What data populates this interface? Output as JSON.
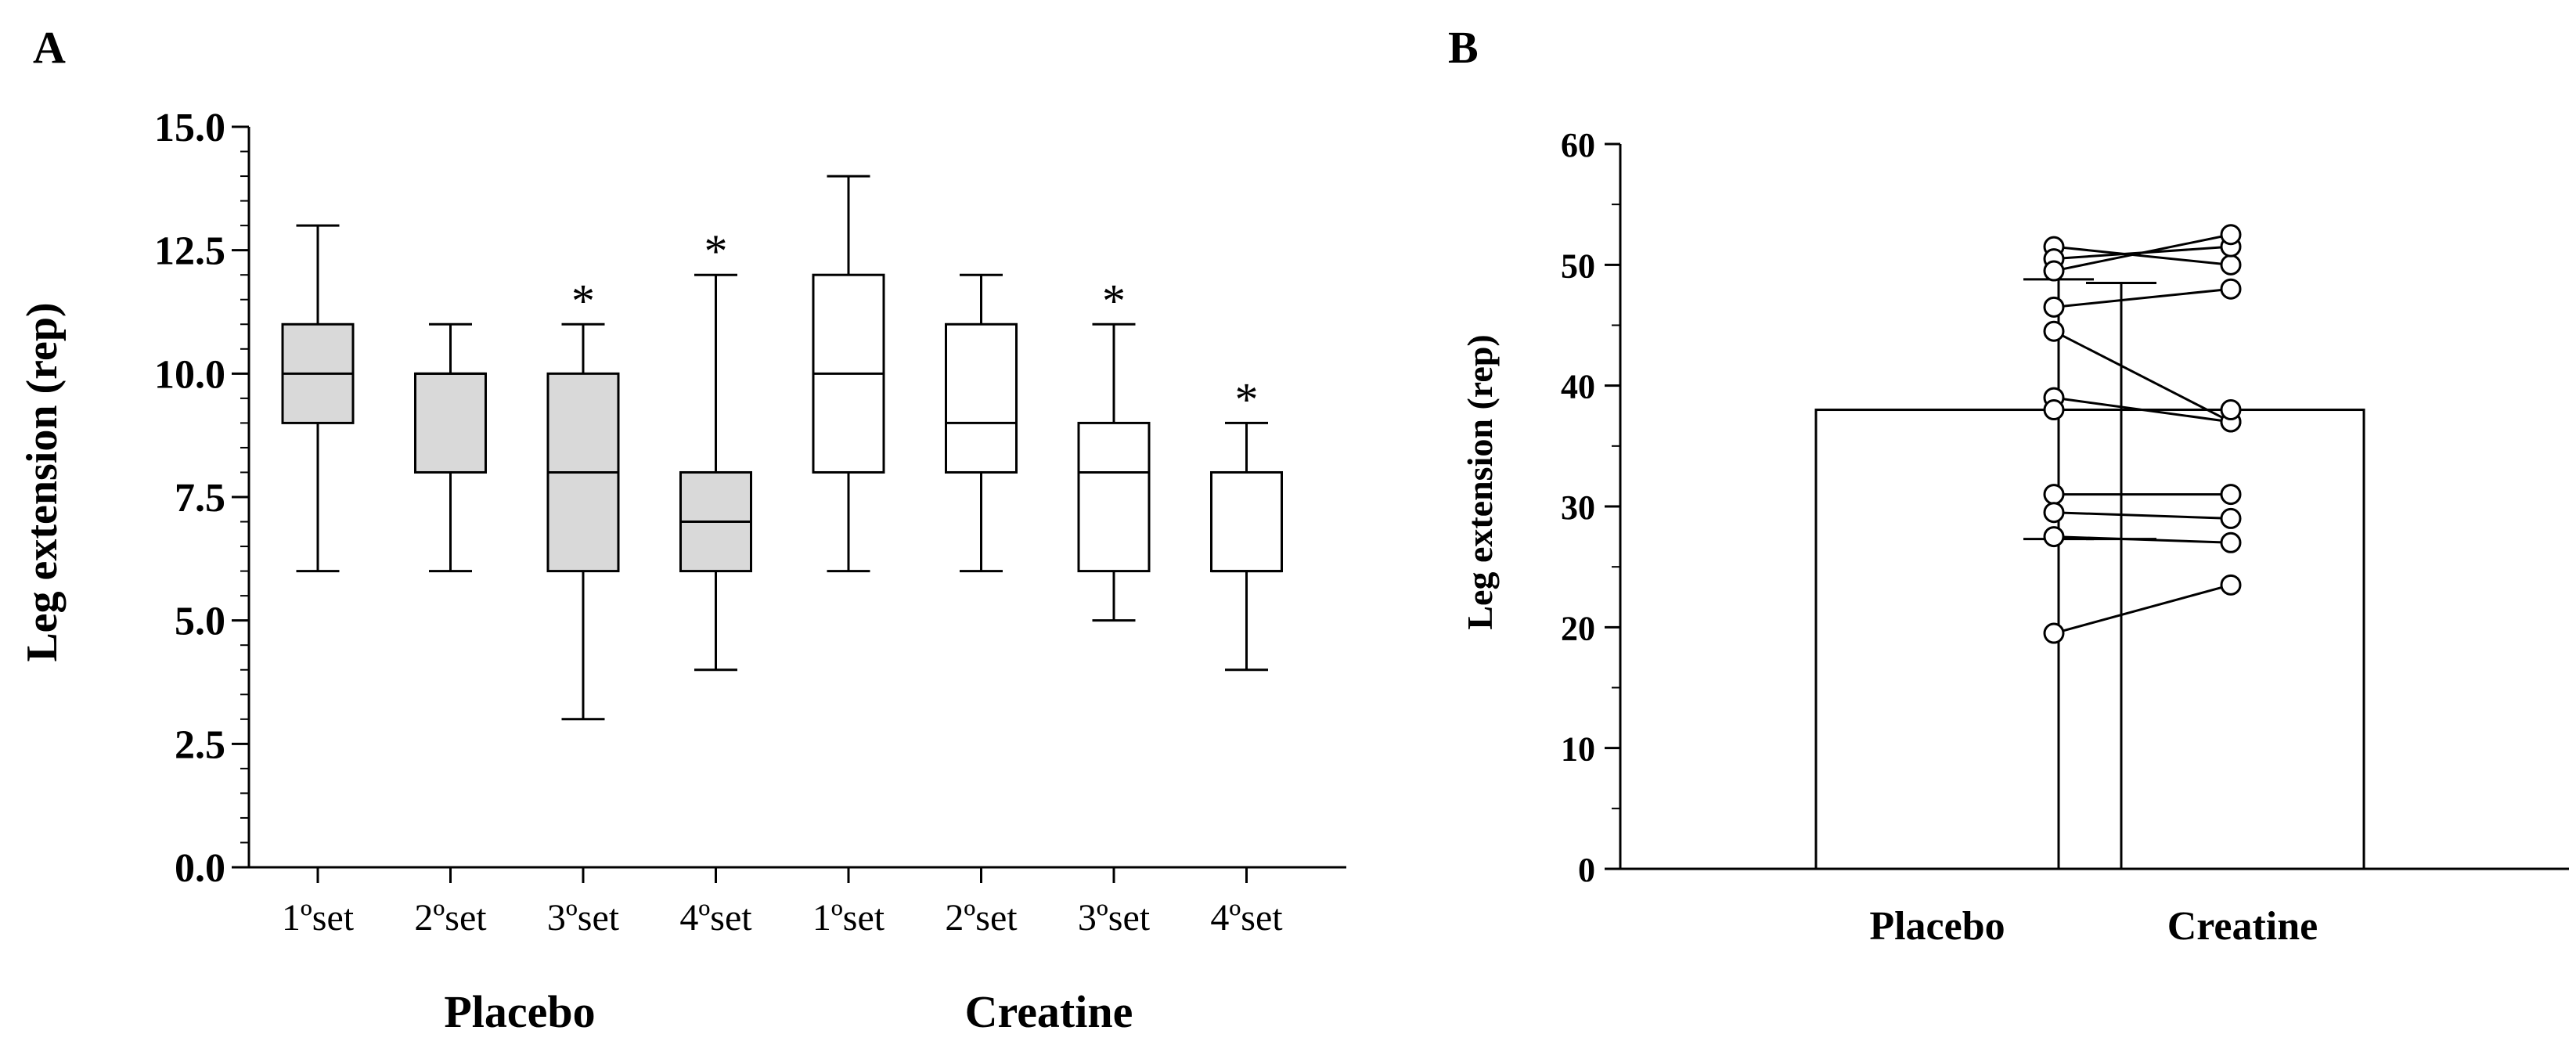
{
  "colors": {
    "axis": "#000000",
    "placebo_fill": "#d9d9d9",
    "creatine_fill": "#ffffff",
    "marker_fill": "#ffffff"
  },
  "chart_data": [
    {
      "panel_label": "A",
      "type": "boxplot",
      "ylabel": "Leg extension (rep)",
      "ylim": [
        0,
        15
      ],
      "yticks": [
        "0.0",
        "2.5",
        "5.0",
        "7.5",
        "10.0",
        "12.5",
        "15.0"
      ],
      "categories": [
        "1ºset",
        "2ºset",
        "3ºset",
        "4ºset",
        "1ºset",
        "2ºset",
        "3ºset",
        "4ºset"
      ],
      "groups": [
        {
          "name": "Placebo",
          "fill": "gray"
        },
        {
          "name": "Creatine",
          "fill": "white"
        }
      ],
      "boxes": [
        {
          "group": "Placebo",
          "set": "1ºset",
          "min": 6,
          "q1": 9,
          "median": 10,
          "q3": 11,
          "max": 13,
          "marker": ""
        },
        {
          "group": "Placebo",
          "set": "2ºset",
          "min": 6,
          "q1": 8,
          "median": 10,
          "q3": 10,
          "max": 11,
          "marker": ""
        },
        {
          "group": "Placebo",
          "set": "3ºset",
          "min": 3,
          "q1": 6,
          "median": 8,
          "q3": 10,
          "max": 11,
          "marker": "*"
        },
        {
          "group": "Placebo",
          "set": "4ºset",
          "min": 4,
          "q1": 6,
          "median": 7,
          "q3": 8,
          "max": 12,
          "marker": "*"
        },
        {
          "group": "Creatine",
          "set": "1ºset",
          "min": 6,
          "q1": 8,
          "median": 10,
          "q3": 12,
          "max": 14,
          "marker": ""
        },
        {
          "group": "Creatine",
          "set": "2ºset",
          "min": 6,
          "q1": 8,
          "median": 9,
          "q3": 11,
          "max": 12,
          "marker": ""
        },
        {
          "group": "Creatine",
          "set": "3ºset",
          "min": 5,
          "q1": 6,
          "median": 8,
          "q3": 9,
          "max": 11,
          "marker": "*"
        },
        {
          "group": "Creatine",
          "set": "4ºset",
          "min": 4,
          "q1": 6,
          "median": 6,
          "q3": 8,
          "max": 9,
          "marker": "*"
        }
      ]
    },
    {
      "panel_label": "B",
      "type": "bar",
      "ylabel": "Leg extension (rep)",
      "ylim": [
        0,
        60
      ],
      "yticks": [
        "0",
        "10",
        "20",
        "30",
        "40",
        "50",
        "60"
      ],
      "categories": [
        "Placebo",
        "Creatine"
      ],
      "means": [
        38,
        38
      ],
      "sd_lower": [
        27.3,
        27.3
      ],
      "sd_upper": [
        48.8,
        48.5
      ],
      "subjects": [
        {
          "placebo": 51.5,
          "creatine": 50.0
        },
        {
          "placebo": 50.5,
          "creatine": 51.5
        },
        {
          "placebo": 49.5,
          "creatine": 52.5
        },
        {
          "placebo": 46.5,
          "creatine": 48.0
        },
        {
          "placebo": 44.5,
          "creatine": 37.0
        },
        {
          "placebo": 39.0,
          "creatine": 37.0
        },
        {
          "placebo": 38.0,
          "creatine": 38.0
        },
        {
          "placebo": 31.0,
          "creatine": 31.0
        },
        {
          "placebo": 29.5,
          "creatine": 29.0
        },
        {
          "placebo": 27.5,
          "creatine": 27.0
        },
        {
          "placebo": 19.5,
          "creatine": 23.5
        }
      ]
    }
  ]
}
